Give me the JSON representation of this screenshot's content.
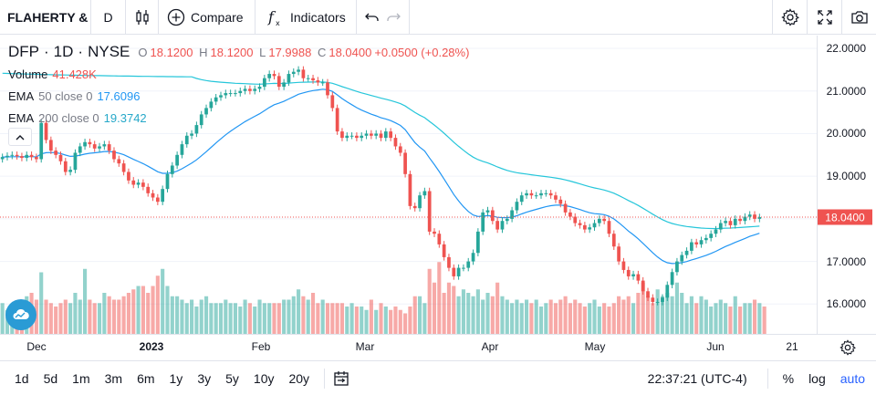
{
  "toolbar": {
    "symbol": "FLAHERTY &",
    "interval": "D",
    "chart_type_icon": "candles-icon",
    "compare_label": "Compare",
    "indicators_label": "Indicators",
    "right_icons": [
      "gear-icon",
      "fullscreen-icon",
      "camera-icon"
    ]
  },
  "legend": {
    "ticker": "DFP",
    "interval": "1D",
    "exchange": "NYSE",
    "open": "18.1200",
    "high": "18.1200",
    "low": "17.9988",
    "close": "18.0400",
    "change": "+0.0500 (+0.28%)",
    "volume_label": "Volume",
    "volume_value": "41.428K",
    "ema50_label": "EMA",
    "ema50_params": "50 close 0",
    "ema50_value": "17.6096",
    "ema200_label": "EMA",
    "ema200_params": "200 close 0",
    "ema200_value": "19.3742"
  },
  "price_axis": {
    "labels": [
      "22.0000",
      "21.0000",
      "20.0000",
      "19.0000",
      "17.0000",
      "16.0000"
    ],
    "last_price": "18.0400"
  },
  "time_axis": {
    "labels": [
      {
        "text": "Dec",
        "bold": false
      },
      {
        "text": "2023",
        "bold": true
      },
      {
        "text": "Feb",
        "bold": false
      },
      {
        "text": "Mar",
        "bold": false
      },
      {
        "text": "Apr",
        "bold": false
      },
      {
        "text": "May",
        "bold": false
      },
      {
        "text": "Jun",
        "bold": false
      },
      {
        "text": "21",
        "bold": false
      }
    ]
  },
  "bottom": {
    "ranges": [
      "1d",
      "5d",
      "1m",
      "3m",
      "6m",
      "1y",
      "3y",
      "5y",
      "10y",
      "20y"
    ],
    "clock": "22:37:21 (UTC-4)",
    "percent": "%",
    "log": "log",
    "auto": "auto"
  },
  "colors": {
    "up": "#26a69a",
    "down": "#ef5350",
    "ema50": "#2196f3",
    "ema200": "#26c6da",
    "last_line": "#ef5350"
  },
  "chart_data": {
    "type": "candlestick",
    "y_range": [
      15.3,
      22.3
    ],
    "ticks": [
      16,
      17,
      18,
      19,
      20,
      21,
      22
    ],
    "last_price": 18.04,
    "series": [
      {
        "name": "DFP",
        "kind": "ohlc",
        "close": [
          19.45,
          19.48,
          19.5,
          19.47,
          19.43,
          19.5,
          19.45,
          19.4,
          20.25,
          19.85,
          19.6,
          19.5,
          19.35,
          19.1,
          19.15,
          19.55,
          19.7,
          19.8,
          19.75,
          19.65,
          19.7,
          19.75,
          19.6,
          19.4,
          19.3,
          19.1,
          18.9,
          18.8,
          18.85,
          18.75,
          18.6,
          18.5,
          18.4,
          18.7,
          19.05,
          19.25,
          19.5,
          19.75,
          19.95,
          20.0,
          20.2,
          20.45,
          20.6,
          20.75,
          20.85,
          20.9,
          20.95,
          20.95,
          20.95,
          21.0,
          21.05,
          21.0,
          21.05,
          21.1,
          21.3,
          21.4,
          21.35,
          21.1,
          21.2,
          21.4,
          21.45,
          21.5,
          21.3,
          21.3,
          21.25,
          21.2,
          21.2,
          20.9,
          20.6,
          20.05,
          19.9,
          19.95,
          19.95,
          19.9,
          19.95,
          20.0,
          19.95,
          20.0,
          19.9,
          20.05,
          19.9,
          19.7,
          19.55,
          19.05,
          18.3,
          18.25,
          18.55,
          18.65,
          17.7,
          17.65,
          17.4,
          17.1,
          16.85,
          16.65,
          16.85,
          16.85,
          17.0,
          17.2,
          17.7,
          18.15,
          18.2,
          17.95,
          17.75,
          17.95,
          18.0,
          18.2,
          18.4,
          18.55,
          18.6,
          18.55,
          18.55,
          18.6,
          18.6,
          18.55,
          18.45,
          18.35,
          18.15,
          18.05,
          17.9,
          17.85,
          17.75,
          17.8,
          17.9,
          18.0,
          17.95,
          17.65,
          17.35,
          17.0,
          16.8,
          16.65,
          16.7,
          16.55,
          16.3,
          16.15,
          16.05,
          16.05,
          16.15,
          16.45,
          16.75,
          17.0,
          17.15,
          17.25,
          17.45,
          17.4,
          17.5,
          17.55,
          17.65,
          17.75,
          17.9,
          17.95,
          17.85,
          18.0,
          17.95,
          18.05,
          18.1,
          18.0,
          18.04
        ]
      },
      {
        "name": "Volume",
        "kind": "histogram",
        "values": [
          0.45,
          0.35,
          0.4,
          0.4,
          0.5,
          0.55,
          0.6,
          0.5,
          0.9,
          0.5,
          0.45,
          0.4,
          0.45,
          0.5,
          0.45,
          0.6,
          0.5,
          0.95,
          0.5,
          0.45,
          0.45,
          0.6,
          0.55,
          0.5,
          0.5,
          0.55,
          0.6,
          0.65,
          0.7,
          0.7,
          0.6,
          0.7,
          0.85,
          0.95,
          0.7,
          0.55,
          0.55,
          0.5,
          0.45,
          0.5,
          0.4,
          0.5,
          0.55,
          0.45,
          0.45,
          0.45,
          0.5,
          0.45,
          0.45,
          0.4,
          0.5,
          0.45,
          0.4,
          0.5,
          0.45,
          0.45,
          0.45,
          0.45,
          0.5,
          0.5,
          0.55,
          0.65,
          0.55,
          0.5,
          0.6,
          0.45,
          0.5,
          0.45,
          0.45,
          0.45,
          0.45,
          0.4,
          0.45,
          0.4,
          0.4,
          0.35,
          0.5,
          0.35,
          0.45,
          0.4,
          0.35,
          0.4,
          0.35,
          0.3,
          0.4,
          0.55,
          0.55,
          0.45,
          0.95,
          0.75,
          1.05,
          0.6,
          0.75,
          0.7,
          0.55,
          0.65,
          0.6,
          0.55,
          0.65,
          0.5,
          0.6,
          0.55,
          0.75,
          0.55,
          0.5,
          0.45,
          0.5,
          0.45,
          0.5,
          0.45,
          0.5,
          0.4,
          0.45,
          0.5,
          0.45,
          0.5,
          0.55,
          0.45,
          0.5,
          0.45,
          0.4,
          0.45,
          0.5,
          0.4,
          0.45,
          0.4,
          0.45,
          0.55,
          0.5,
          0.55,
          0.45,
          0.6,
          0.75,
          0.55,
          0.45,
          0.65,
          0.55,
          0.6,
          0.55,
          0.75,
          0.6,
          0.45,
          0.55,
          0.45,
          0.55,
          0.5,
          0.4,
          0.45,
          0.5,
          0.45,
          0.4,
          0.55,
          0.4,
          0.45,
          0.45,
          0.5,
          0.45,
          0.4
        ]
      },
      {
        "name": "EMA 50",
        "kind": "line"
      },
      {
        "name": "EMA 200",
        "kind": "line"
      }
    ]
  }
}
